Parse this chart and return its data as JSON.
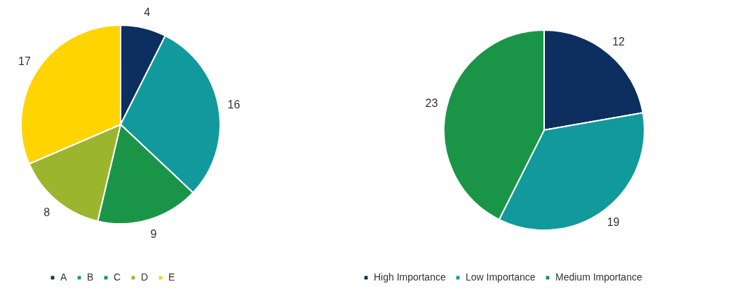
{
  "chart_data": [
    {
      "type": "pie",
      "categories": [
        "A",
        "B",
        "C",
        "D",
        "E"
      ],
      "values": [
        4,
        16,
        9,
        8,
        17
      ],
      "colors": [
        "#0c2f5f",
        "#12999b",
        "#1a9548",
        "#9bb52f",
        "#ffd400"
      ],
      "data_labels": true,
      "legend": "bottom"
    },
    {
      "type": "pie",
      "categories": [
        "High Importance",
        "Low Importance",
        "Medium Importance"
      ],
      "values": [
        12,
        19,
        23
      ],
      "colors": [
        "#0c2f5f",
        "#12999b",
        "#1a9548"
      ],
      "data_labels": true,
      "legend": "bottom"
    }
  ]
}
